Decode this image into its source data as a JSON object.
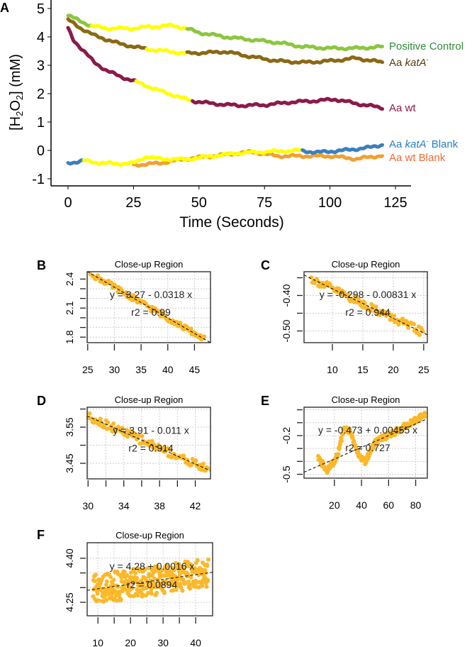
{
  "chart_data": [
    {
      "panel": "A",
      "type": "line",
      "xlabel": "Time (Seconds)",
      "ylabel": "[H2O2] (mM)",
      "xlim": [
        -5,
        132
      ],
      "ylim": [
        -1.25,
        5.2
      ],
      "xticks": [
        0,
        25,
        50,
        75,
        100,
        125
      ],
      "yticks": [
        -1,
        0,
        1,
        2,
        3,
        4,
        5
      ],
      "highlight_color": "#ffff00",
      "series": [
        {
          "name": "Positive Control",
          "color": "#8cc63f",
          "label_color": "#2e8b3a",
          "x": [
            0,
            5,
            9,
            15,
            25,
            30,
            40,
            45,
            50,
            60,
            70,
            80,
            90,
            100,
            110,
            120
          ],
          "y": [
            4.75,
            4.55,
            4.38,
            4.3,
            4.3,
            4.35,
            4.4,
            4.3,
            4.15,
            4.0,
            3.9,
            3.8,
            3.65,
            3.6,
            3.6,
            3.65
          ],
          "highlight": [
            9,
            45
          ]
        },
        {
          "name": "Aa katA-",
          "name_plain": "Aa ",
          "name_italic": "katA",
          "name_sup": "-",
          "color": "#8b6914",
          "label_color": "#5a3a10",
          "x": [
            0,
            5,
            10,
            20,
            30,
            37,
            45,
            55,
            60,
            70,
            80,
            90,
            100,
            110,
            120
          ],
          "y": [
            4.6,
            4.3,
            4.05,
            3.75,
            3.57,
            3.5,
            3.42,
            3.45,
            3.48,
            3.3,
            3.15,
            3.1,
            3.15,
            3.25,
            3.1
          ],
          "highlight": [
            30,
            45
          ]
        },
        {
          "name": "Aa wt",
          "color": "#8b1a4a",
          "label_color": "#8b1a4a",
          "x": [
            0,
            2,
            5,
            10,
            15,
            20,
            25,
            35,
            47,
            55,
            65,
            75,
            85,
            95,
            102,
            110,
            120
          ],
          "y": [
            4.3,
            3.9,
            3.6,
            3.1,
            2.8,
            2.6,
            2.45,
            2.1,
            1.75,
            1.65,
            1.58,
            1.6,
            1.7,
            1.75,
            1.8,
            1.65,
            1.5
          ],
          "highlight": [
            26,
            47
          ]
        },
        {
          "name": "Aa katA- Blank",
          "name_plain": "Aa ",
          "name_italic": "katA",
          "name_sup": "-",
          "name_suffix": " Blank",
          "color": "#3b7fbf",
          "label_color": "#2a7fc0",
          "x": [
            0,
            6,
            10,
            18,
            25,
            30,
            35,
            45,
            55,
            65,
            75,
            88,
            95,
            105,
            115,
            120
          ],
          "y": [
            -0.45,
            -0.36,
            -0.42,
            -0.47,
            -0.45,
            -0.22,
            -0.3,
            -0.32,
            -0.2,
            -0.1,
            -0.05,
            0.0,
            -0.07,
            0.0,
            0.1,
            0.2
          ],
          "highlight": [
            6,
            89
          ]
        },
        {
          "name": "Aa wt Blank",
          "color": "#f0a030",
          "label_color": "#f06a30",
          "x": [
            25,
            35,
            45,
            60,
            70,
            80,
            90,
            100,
            110,
            120
          ],
          "y": [
            -0.52,
            -0.45,
            -0.3,
            -0.15,
            -0.05,
            -0.2,
            -0.2,
            -0.2,
            -0.3,
            -0.18
          ],
          "highlight": null
        }
      ]
    },
    {
      "panel": "B",
      "type": "scatter",
      "title": "Close-up Region",
      "equation": "y = 3.27 - 0.0318 x",
      "r2": "r2 = 0.99",
      "fit": {
        "intercept": 3.27,
        "slope": -0.0318
      },
      "xlim": [
        24.9,
        48
      ],
      "ylim": [
        1.743,
        2.476
      ],
      "x_range": [
        25.5,
        47
      ],
      "xticks": [
        25,
        30,
        35,
        40,
        45
      ],
      "xtick_labels": [
        "25",
        "30",
        "35",
        "40",
        "45"
      ],
      "yticks": [
        1.8,
        1.9,
        2.0,
        2.1,
        2.2,
        2.3,
        2.4
      ],
      "ytick_labels": [
        "1.8",
        "",
        "",
        "2.1",
        "",
        "",
        "2.4"
      ],
      "point_color": "#fbb829"
    },
    {
      "panel": "C",
      "type": "scatter",
      "title": "Close-up Region",
      "equation": "y = -0.298 - 0.00831 x",
      "r2": "r2 = 0.944",
      "fit": {
        "intercept": -0.298,
        "slope": -0.00831
      },
      "xlim": [
        5.35,
        25.6
      ],
      "ylim": [
        -0.533,
        -0.333
      ],
      "x_range": [
        6.5,
        25
      ],
      "xticks": [
        10,
        15,
        20,
        25
      ],
      "xtick_labels": [
        "10",
        "15",
        "20",
        "25"
      ],
      "yticks": [
        -0.35,
        -0.4,
        -0.45,
        -0.5
      ],
      "ytick_labels": [
        "",
        "-0.40",
        "",
        "-0.50"
      ],
      "point_color": "#fbb829"
    },
    {
      "panel": "D",
      "type": "scatter",
      "title": "Close-up Region",
      "equation": "y = 3.91 - 0.011 x",
      "r2": "r2 = 0.914",
      "fit": {
        "intercept": 3.91,
        "slope": -0.011
      },
      "xlim": [
        29.9,
        43.7
      ],
      "ylim": [
        3.407,
        3.605
      ],
      "x_range": [
        30,
        43.5
      ],
      "xticks": [
        30,
        32,
        34,
        36,
        38,
        40,
        42
      ],
      "xtick_labels": [
        "30",
        "",
        "34",
        "",
        "38",
        "",
        "42"
      ],
      "yticks": [
        3.45,
        3.5,
        3.55,
        3.6
      ],
      "ytick_labels": [
        "3.45",
        "",
        "3.55",
        ""
      ],
      "point_color": "#fbb829"
    },
    {
      "panel": "E",
      "type": "scatter",
      "title": "Close-up Region",
      "equation": "y = -0.473 + 0.00455 x",
      "r2": "r2 = 0.727",
      "fit": {
        "intercept": -0.473,
        "slope": 0.00455
      },
      "xlim": [
        -2.4,
        88.6
      ],
      "ylim": [
        -0.53,
        0.02
      ],
      "x_range": [
        8,
        87
      ],
      "xticks": [
        20,
        40,
        60,
        80
      ],
      "xtick_labels": [
        "20",
        "40",
        "60",
        "80"
      ],
      "yticks": [
        0.0,
        -0.1,
        -0.2,
        -0.3,
        -0.4,
        -0.5
      ],
      "ytick_labels": [
        "",
        "",
        "-0.2",
        "",
        "",
        "-0.5"
      ],
      "point_color": "#fbb829",
      "trend": {
        "x": [
          8,
          15,
          22,
          27,
          32,
          38,
          43,
          50,
          60,
          70,
          80,
          87
        ],
        "y": [
          -0.38,
          -0.47,
          -0.36,
          -0.15,
          -0.17,
          -0.36,
          -0.4,
          -0.25,
          -0.2,
          -0.14,
          -0.08,
          -0.03
        ]
      }
    },
    {
      "panel": "F",
      "type": "scatter",
      "title": "Close-up Region",
      "equation": "y = 4.28 + 0.0016 x",
      "r2": "r2 = 0.0894",
      "fit": {
        "intercept": 4.28,
        "slope": 0.0016
      },
      "xlim": [
        6.7,
        45.2
      ],
      "ylim": [
        4.204,
        4.453
      ],
      "x_range": [
        8.5,
        44
      ],
      "xticks": [
        10,
        15,
        20,
        25,
        30,
        35,
        40
      ],
      "xtick_labels": [
        "10",
        "",
        "20",
        "",
        "30",
        "",
        "40"
      ],
      "yticks": [
        4.25,
        4.3,
        4.35,
        4.4
      ],
      "ytick_labels": [
        "4.25",
        "",
        "",
        "4.40"
      ],
      "point_color": "#fbb829"
    }
  ]
}
